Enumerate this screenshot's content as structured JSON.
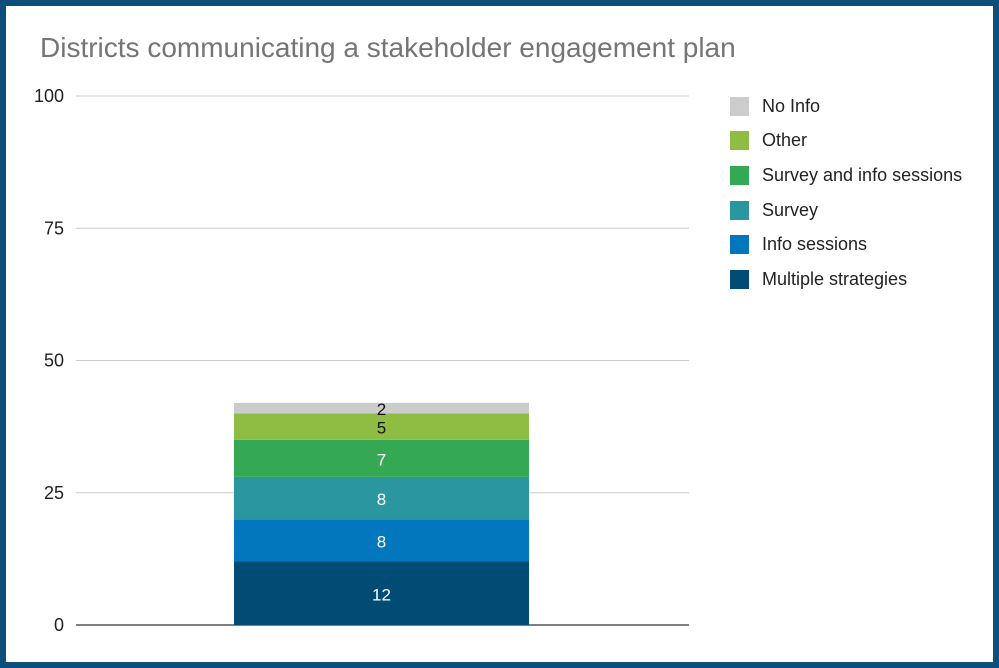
{
  "chart_data": {
    "type": "bar",
    "stacked": true,
    "title": "Districts communicating a stakeholder engagement plan",
    "xlabel": "",
    "ylabel": "",
    "ylim": [
      0,
      100
    ],
    "yticks": [
      "0",
      "25",
      "50",
      "75",
      "100"
    ],
    "grid": true,
    "legend_position": "right",
    "categories": [
      ""
    ],
    "series": [
      {
        "name": "Multiple strategies",
        "values": [
          12
        ],
        "color": "#004c74",
        "label_color": "#ffffff"
      },
      {
        "name": "Info sessions",
        "values": [
          8
        ],
        "color": "#0277bd",
        "label_color": "#ffffff"
      },
      {
        "name": "Survey",
        "values": [
          8
        ],
        "color": "#2a96a0",
        "label_color": "#ffffff"
      },
      {
        "name": "Survey and info sessions",
        "values": [
          7
        ],
        "color": "#34a853",
        "label_color": "#ffffff"
      },
      {
        "name": "Other",
        "values": [
          5
        ],
        "color": "#8fbc43",
        "label_color": "#111111"
      },
      {
        "name": "No Info",
        "values": [
          2
        ],
        "color": "#cccccc",
        "label_color": "#111111"
      }
    ],
    "data_labels": [
      "12",
      "8",
      "8",
      "7",
      "5",
      "2"
    ],
    "legend_order": [
      "No Info",
      "Other",
      "Survey and info sessions",
      "Survey",
      "Info sessions",
      "Multiple strategies"
    ]
  }
}
